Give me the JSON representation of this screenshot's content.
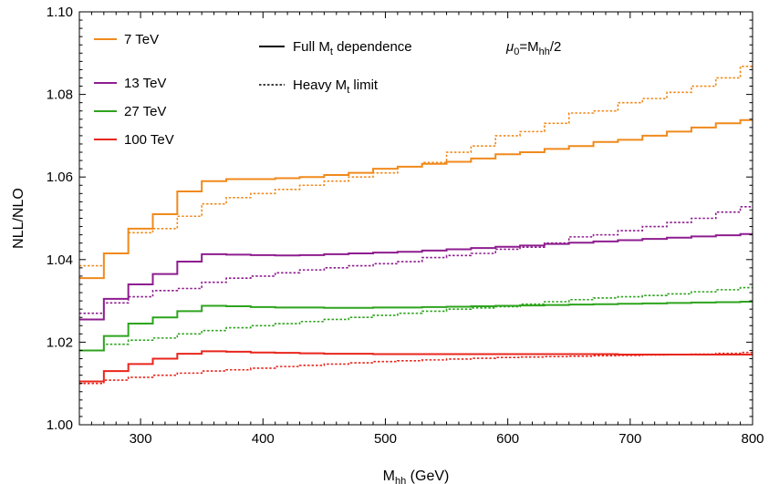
{
  "chart_data": {
    "type": "line",
    "step": true,
    "xlabel": "M_hh (GeV)",
    "xlabel_parts": {
      "main": "M",
      "sub": "hh",
      "rest": " (GeV)"
    },
    "ylabel": "NLL/NLO",
    "xlim": [
      250,
      800
    ],
    "ylim": [
      1.0,
      1.1
    ],
    "xticks": [
      300,
      400,
      500,
      600,
      700,
      800
    ],
    "yticks": [
      "1.00",
      "1.02",
      "1.04",
      "1.06",
      "1.08",
      "1.10"
    ],
    "annotation": {
      "text": "μ0=Mhh/2",
      "mu": "μ",
      "mu_sub": "0",
      "eq": "=M",
      "m_sub": "hh",
      "tail": "/2"
    },
    "style_legend": [
      {
        "label": "Full Mt dependence",
        "main": "Full M",
        "sub": "t",
        "rest": " dependence",
        "dash": "solid"
      },
      {
        "label": "Heavy Mt limit",
        "main": "Heavy M",
        "sub": "t",
        "rest": " limit",
        "dash": "dotted"
      }
    ],
    "bin_edges": [
      250,
      270,
      290,
      310,
      330,
      350,
      370,
      390,
      410,
      430,
      450,
      470,
      490,
      510,
      530,
      550,
      570,
      590,
      610,
      630,
      650,
      670,
      690,
      710,
      730,
      750,
      770,
      790,
      800
    ],
    "series": [
      {
        "name": "7 TeV",
        "color": "#f08a1c",
        "full": [
          1.0355,
          1.0415,
          1.0475,
          1.051,
          1.0565,
          1.059,
          1.0595,
          1.0595,
          1.0597,
          1.06,
          1.0605,
          1.061,
          1.062,
          1.0625,
          1.0632,
          1.0637,
          1.0645,
          1.0655,
          1.066,
          1.0668,
          1.0675,
          1.0685,
          1.069,
          1.07,
          1.071,
          1.072,
          1.073,
          1.0738
        ],
        "heavy": [
          1.0385,
          1.0415,
          1.0465,
          1.0475,
          1.0505,
          1.0535,
          1.055,
          1.056,
          1.057,
          1.058,
          1.059,
          1.06,
          1.061,
          1.0625,
          1.0635,
          1.066,
          1.0675,
          1.07,
          1.071,
          1.073,
          1.0755,
          1.076,
          1.078,
          1.079,
          1.0805,
          1.082,
          1.084,
          1.0868
        ]
      },
      {
        "name": "13 TeV",
        "color": "#8e1d8f",
        "full": [
          1.0255,
          1.0305,
          1.034,
          1.0365,
          1.0395,
          1.0413,
          1.0412,
          1.0411,
          1.041,
          1.0411,
          1.0413,
          1.0415,
          1.0417,
          1.0419,
          1.0422,
          1.0425,
          1.0428,
          1.0431,
          1.0434,
          1.0438,
          1.0441,
          1.0444,
          1.0447,
          1.045,
          1.0453,
          1.0456,
          1.0459,
          1.0462
        ],
        "heavy": [
          1.027,
          1.0295,
          1.031,
          1.0325,
          1.033,
          1.0345,
          1.0355,
          1.036,
          1.0368,
          1.0375,
          1.038,
          1.0385,
          1.039,
          1.0395,
          1.0405,
          1.041,
          1.0415,
          1.0425,
          1.043,
          1.044,
          1.0455,
          1.046,
          1.047,
          1.048,
          1.049,
          1.05,
          1.0515,
          1.0528
        ]
      },
      {
        "name": "27 TeV",
        "color": "#2ea41e",
        "full": [
          1.018,
          1.0215,
          1.0245,
          1.026,
          1.0275,
          1.0288,
          1.0287,
          1.0285,
          1.0284,
          1.0284,
          1.0283,
          1.0283,
          1.0284,
          1.0284,
          1.0285,
          1.0286,
          1.0287,
          1.0288,
          1.0289,
          1.029,
          1.0291,
          1.0292,
          1.0293,
          1.0294,
          1.0295,
          1.0296,
          1.0297,
          1.0298
        ],
        "heavy": [
          1.018,
          1.0195,
          1.0205,
          1.021,
          1.022,
          1.0228,
          1.0235,
          1.024,
          1.0245,
          1.025,
          1.0255,
          1.026,
          1.0265,
          1.027,
          1.0275,
          1.028,
          1.0283,
          1.0286,
          1.0292,
          1.0298,
          1.0303,
          1.0307,
          1.031,
          1.0313,
          1.0317,
          1.0322,
          1.0327,
          1.0332
        ]
      },
      {
        "name": "100 TeV",
        "color": "#e8261d",
        "full": [
          1.0105,
          1.013,
          1.0147,
          1.016,
          1.0172,
          1.0178,
          1.0177,
          1.0175,
          1.0174,
          1.0173,
          1.0172,
          1.0172,
          1.0171,
          1.0171,
          1.0171,
          1.0171,
          1.0171,
          1.0171,
          1.0171,
          1.0171,
          1.0171,
          1.0171,
          1.017,
          1.017,
          1.017,
          1.017,
          1.017,
          1.017
        ],
        "heavy": [
          1.01,
          1.0108,
          1.0115,
          1.012,
          1.0125,
          1.013,
          1.0133,
          1.0137,
          1.0141,
          1.0144,
          1.0147,
          1.015,
          1.0153,
          1.0155,
          1.0157,
          1.0159,
          1.0161,
          1.0163,
          1.0164,
          1.0165,
          1.0166,
          1.0167,
          1.0168,
          1.0169,
          1.017,
          1.0171,
          1.0173,
          1.0175
        ]
      }
    ]
  }
}
